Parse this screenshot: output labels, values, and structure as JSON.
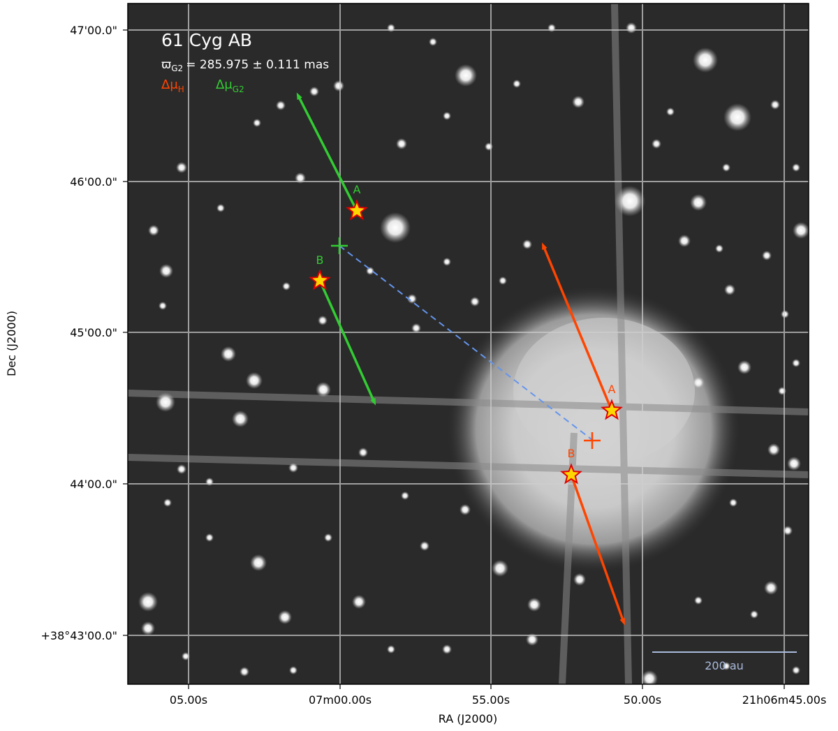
{
  "title": "61 Cyg AB",
  "parallax_symbol": "ϖ",
  "parallax_sub": "G2",
  "parallax_value": "= 285.975 ± 0.111 mas",
  "legend": {
    "hip": {
      "prefix": "Δμ",
      "sub": "H",
      "color": "#ff4500"
    },
    "gaia": {
      "prefix": "Δμ",
      "sub": "G2",
      "color": "#33cc33"
    }
  },
  "axes": {
    "xlabel": "RA (J2000)",
    "ylabel": "Dec (J2000)",
    "xticks": [
      "05.00s",
      "07m00.00s",
      "55.00s",
      "50.00s",
      "21h06m45.00s"
    ],
    "yticks": [
      "47'00.0\"",
      "46'00.0\"",
      "45'00.0\"",
      "44'00.0\"",
      "+38°43'00.0\""
    ]
  },
  "stars": {
    "gaia_A": "A",
    "gaia_B": "B",
    "hip_A": "A",
    "hip_B": "B"
  },
  "scalebar_label": "200 au",
  "colors": {
    "hip": "#ff4500",
    "gaia": "#33cc33",
    "connector": "#6495ed",
    "star_fill": "#ffd700",
    "star_edge": "#e00000",
    "scalebar": "#aabbdd"
  }
}
